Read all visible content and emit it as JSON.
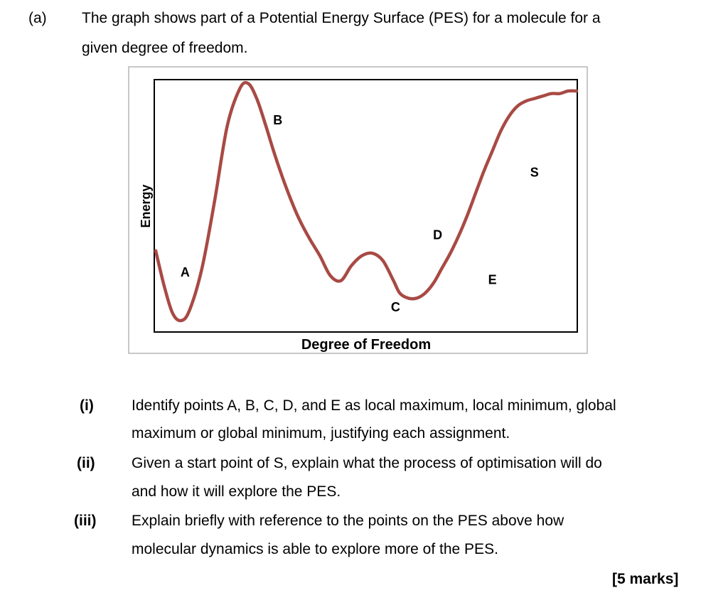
{
  "question": {
    "part_label": "(a)",
    "intro_line1": "The graph shows part of a Potential Energy Surface (PES) for a molecule for a",
    "intro_line2": "given degree of freedom.",
    "subquestions": [
      {
        "label": "(i)",
        "line1": "Identify points A, B, C, D, and E as local maximum, local minimum, global",
        "line2": "maximum or global minimum, justifying each assignment."
      },
      {
        "label": "(ii)",
        "line1": "Given a start point of S, explain what the process of optimisation will do",
        "line2": "and how it will explore the PES."
      },
      {
        "label": "(iii)",
        "line1": "Explain briefly with reference to the points on the PES above how",
        "line2": "molecular dynamics is able to explore more of the PES."
      }
    ],
    "marks": "[5 marks]"
  },
  "chart_data": {
    "type": "line",
    "xlabel": "Degree of Freedom",
    "ylabel": "Energy",
    "grid": false,
    "legend": "none",
    "curve_color": "#a84a44",
    "series": [
      {
        "x": [
          0,
          2,
          4,
          6,
          8,
          11,
          14,
          17,
          20,
          22,
          24,
          26,
          28,
          30,
          32,
          34,
          36.5,
          39,
          41.5,
          44,
          46.5,
          49,
          51.5,
          54,
          56.5,
          58,
          60,
          62,
          64,
          66,
          68,
          70,
          72,
          74,
          76,
          78,
          80,
          82,
          84,
          86,
          88,
          90,
          92,
          94,
          96,
          98,
          100
        ],
        "y": [
          0.32,
          0.18,
          0.07,
          0.04,
          0.08,
          0.25,
          0.52,
          0.82,
          0.97,
          0.99,
          0.93,
          0.83,
          0.72,
          0.62,
          0.53,
          0.45,
          0.37,
          0.3,
          0.22,
          0.2,
          0.26,
          0.3,
          0.31,
          0.28,
          0.2,
          0.15,
          0.13,
          0.13,
          0.15,
          0.19,
          0.25,
          0.31,
          0.38,
          0.46,
          0.55,
          0.64,
          0.72,
          0.8,
          0.86,
          0.9,
          0.92,
          0.93,
          0.94,
          0.95,
          0.95,
          0.96,
          0.96
        ]
      }
    ],
    "annotations": [
      {
        "label": "A",
        "x": 7,
        "y": 0.23
      },
      {
        "label": "B",
        "x": 29,
        "y": 0.84
      },
      {
        "label": "C",
        "x": 57,
        "y": 0.09
      },
      {
        "label": "D",
        "x": 67,
        "y": 0.38
      },
      {
        "label": "E",
        "x": 80,
        "y": 0.2
      },
      {
        "label": "S",
        "x": 90,
        "y": 0.63
      }
    ]
  }
}
